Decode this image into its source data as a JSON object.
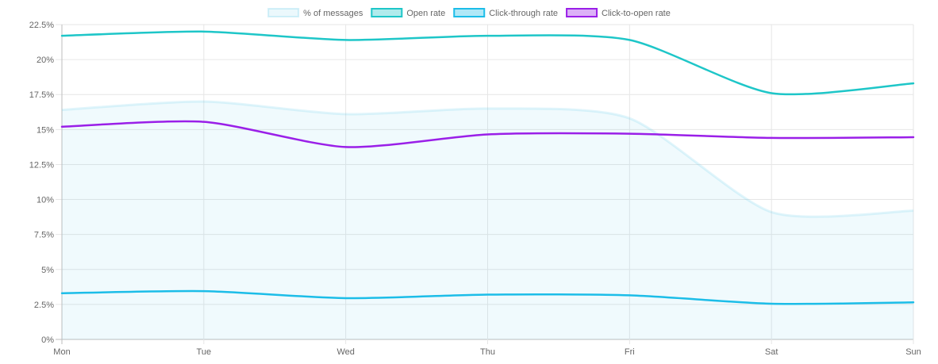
{
  "chart_data": {
    "type": "line",
    "categories": [
      "Mon",
      "Tue",
      "Wed",
      "Thu",
      "Fri",
      "Sat",
      "Sun"
    ],
    "y_ticks": [
      "0%",
      "2.5%",
      "5%",
      "7.5%",
      "10%",
      "12.5%",
      "15%",
      "17.5%",
      "20%",
      "22.5%"
    ],
    "ylim": [
      0,
      22.5
    ],
    "grid": true,
    "legend_position": "top",
    "series": [
      {
        "name": "% of messages",
        "style": "area",
        "color": "#5bc8e8",
        "values": [
          16.4,
          17.0,
          16.1,
          16.5,
          15.8,
          9.1,
          9.2
        ]
      },
      {
        "name": "Open rate",
        "style": "line",
        "color": "#1ec6c8",
        "values": [
          21.7,
          22.0,
          21.4,
          21.7,
          21.4,
          17.6,
          18.3
        ]
      },
      {
        "name": "Click-through rate",
        "style": "line",
        "color": "#1cbde8",
        "values": [
          3.3,
          3.45,
          2.95,
          3.2,
          3.15,
          2.55,
          2.65
        ]
      },
      {
        "name": "Click-to-open rate",
        "style": "line",
        "color": "#9a1fe8",
        "values": [
          15.2,
          15.55,
          13.75,
          14.65,
          14.7,
          14.4,
          14.45
        ]
      }
    ]
  }
}
